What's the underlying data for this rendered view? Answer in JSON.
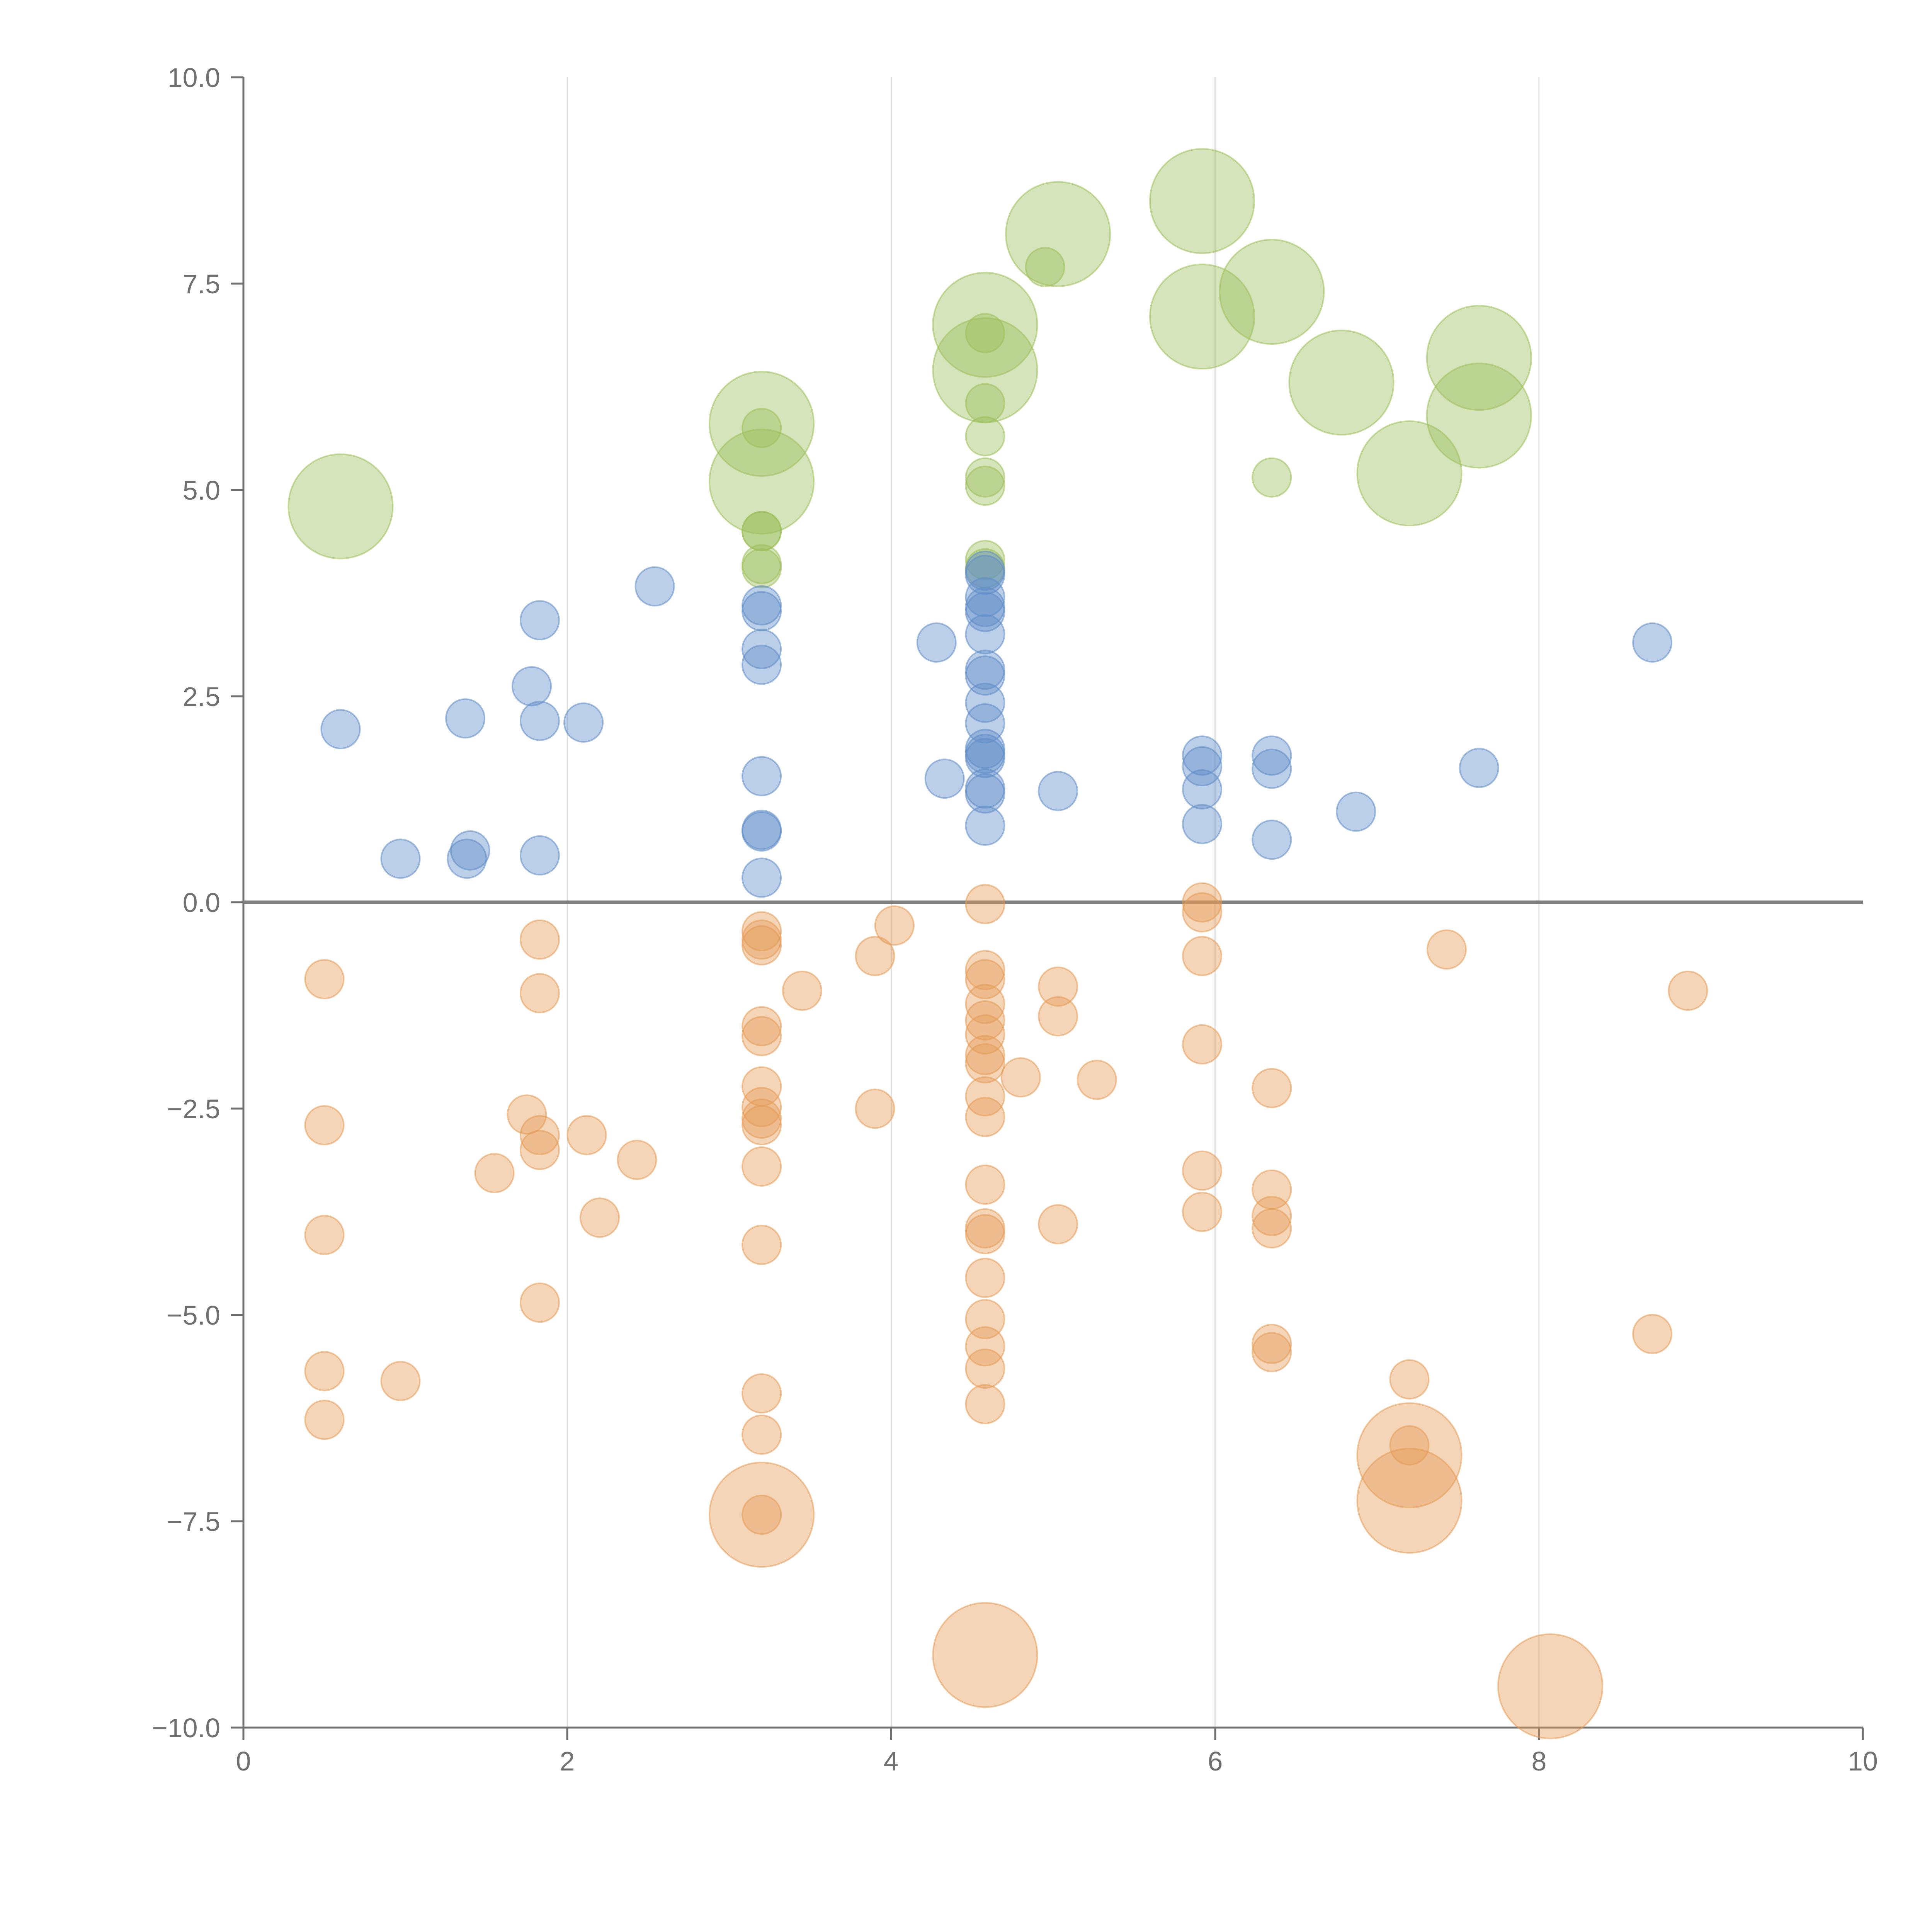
{
  "chart_data": {
    "type": "scatter",
    "title": "",
    "xlabel": "",
    "ylabel": "",
    "xlim": [
      0,
      10
    ],
    "ylim": [
      -10,
      10
    ],
    "x_ticks": [
      "0",
      "2",
      "4",
      "6",
      "8",
      "10"
    ],
    "y_ticks": [
      "10.0",
      "7.5",
      "5.0",
      "2.5",
      "0.0",
      "−2.5",
      "−5.0",
      "−7.5",
      "−10.0"
    ],
    "grid": "vertical gridlines at x ticks",
    "zero_line": true,
    "colors": {
      "green": "#9cbf5a",
      "blue": "#5f8dc7",
      "orange": "#e59a55",
      "axis": "#707070",
      "grid": "#dddddd",
      "zero_line": "#7f7f7f"
    },
    "series": [
      {
        "color_key": "green",
        "points": [
          {
            "x": 0.6,
            "y": 4.8,
            "r": "large"
          },
          {
            "x": 3.2,
            "y": 5.8,
            "r": "large"
          },
          {
            "x": 3.2,
            "y": 5.1,
            "r": "large"
          },
          {
            "x": 3.2,
            "y": 5.75,
            "r": "small"
          },
          {
            "x": 3.2,
            "y": 4.5,
            "r": "small"
          },
          {
            "x": 3.2,
            "y": 4.5,
            "r": "small"
          },
          {
            "x": 3.2,
            "y": 4.1,
            "r": "small"
          },
          {
            "x": 3.2,
            "y": 4.05,
            "r": "small"
          },
          {
            "x": 4.58,
            "y": 7.0,
            "r": "large"
          },
          {
            "x": 4.58,
            "y": 6.45,
            "r": "large"
          },
          {
            "x": 4.58,
            "y": 6.9,
            "r": "small"
          },
          {
            "x": 4.58,
            "y": 6.05,
            "r": "small"
          },
          {
            "x": 4.58,
            "y": 5.65,
            "r": "small"
          },
          {
            "x": 4.58,
            "y": 5.15,
            "r": "small"
          },
          {
            "x": 4.58,
            "y": 5.05,
            "r": "small"
          },
          {
            "x": 4.58,
            "y": 4.15,
            "r": "small"
          },
          {
            "x": 4.58,
            "y": 4.05,
            "r": "small"
          },
          {
            "x": 4.95,
            "y": 7.7,
            "r": "small"
          },
          {
            "x": 5.03,
            "y": 8.1,
            "r": "large"
          },
          {
            "x": 5.92,
            "y": 8.5,
            "r": "large"
          },
          {
            "x": 5.92,
            "y": 7.1,
            "r": "large"
          },
          {
            "x": 6.35,
            "y": 7.4,
            "r": "large"
          },
          {
            "x": 6.35,
            "y": 5.15,
            "r": "small"
          },
          {
            "x": 6.78,
            "y": 6.3,
            "r": "large"
          },
          {
            "x": 7.2,
            "y": 5.2,
            "r": "large"
          },
          {
            "x": 7.63,
            "y": 6.6,
            "r": "large"
          },
          {
            "x": 7.63,
            "y": 5.9,
            "r": "large"
          }
        ]
      },
      {
        "color_key": "blue",
        "points": [
          {
            "x": 0.6,
            "y": 2.1,
            "r": "small"
          },
          {
            "x": 0.97,
            "y": 0.53,
            "r": "small"
          },
          {
            "x": 1.37,
            "y": 2.23,
            "r": "small"
          },
          {
            "x": 1.38,
            "y": 0.53,
            "r": "small"
          },
          {
            "x": 1.4,
            "y": 0.63,
            "r": "small"
          },
          {
            "x": 1.78,
            "y": 2.62,
            "r": "small"
          },
          {
            "x": 1.83,
            "y": 3.42,
            "r": "small"
          },
          {
            "x": 1.83,
            "y": 2.2,
            "r": "small"
          },
          {
            "x": 1.83,
            "y": 0.57,
            "r": "small"
          },
          {
            "x": 2.1,
            "y": 2.18,
            "r": "small"
          },
          {
            "x": 2.54,
            "y": 3.83,
            "r": "small"
          },
          {
            "x": 3.2,
            "y": 3.6,
            "r": "small"
          },
          {
            "x": 3.2,
            "y": 3.53,
            "r": "small"
          },
          {
            "x": 3.2,
            "y": 3.07,
            "r": "small"
          },
          {
            "x": 3.2,
            "y": 2.88,
            "r": "small"
          },
          {
            "x": 3.2,
            "y": 1.53,
            "r": "small"
          },
          {
            "x": 3.2,
            "y": 0.88,
            "r": "small"
          },
          {
            "x": 3.2,
            "y": 0.86,
            "r": "small"
          },
          {
            "x": 3.2,
            "y": 0.3,
            "r": "small"
          },
          {
            "x": 4.28,
            "y": 3.15,
            "r": "small"
          },
          {
            "x": 4.33,
            "y": 1.5,
            "r": "small"
          },
          {
            "x": 4.58,
            "y": 4.02,
            "r": "small"
          },
          {
            "x": 4.58,
            "y": 3.97,
            "r": "small"
          },
          {
            "x": 4.58,
            "y": 3.7,
            "r": "small"
          },
          {
            "x": 4.58,
            "y": 3.58,
            "r": "small"
          },
          {
            "x": 4.58,
            "y": 3.52,
            "r": "small"
          },
          {
            "x": 4.58,
            "y": 3.25,
            "r": "small"
          },
          {
            "x": 4.58,
            "y": 2.82,
            "r": "small"
          },
          {
            "x": 4.58,
            "y": 2.75,
            "r": "small"
          },
          {
            "x": 4.58,
            "y": 2.42,
            "r": "small"
          },
          {
            "x": 4.58,
            "y": 2.17,
            "r": "small"
          },
          {
            "x": 4.58,
            "y": 1.86,
            "r": "small"
          },
          {
            "x": 4.58,
            "y": 1.8,
            "r": "small"
          },
          {
            "x": 4.58,
            "y": 1.75,
            "r": "small"
          },
          {
            "x": 4.58,
            "y": 1.38,
            "r": "small"
          },
          {
            "x": 4.58,
            "y": 1.32,
            "r": "small"
          },
          {
            "x": 4.58,
            "y": 0.93,
            "r": "small"
          },
          {
            "x": 5.03,
            "y": 1.35,
            "r": "small"
          },
          {
            "x": 5.92,
            "y": 1.78,
            "r": "small"
          },
          {
            "x": 5.92,
            "y": 1.65,
            "r": "small"
          },
          {
            "x": 5.92,
            "y": 1.37,
            "r": "small"
          },
          {
            "x": 5.92,
            "y": 0.95,
            "r": "small"
          },
          {
            "x": 6.35,
            "y": 1.78,
            "r": "small"
          },
          {
            "x": 6.35,
            "y": 1.62,
            "r": "small"
          },
          {
            "x": 6.35,
            "y": 0.76,
            "r": "small"
          },
          {
            "x": 6.87,
            "y": 1.1,
            "r": "small"
          },
          {
            "x": 7.63,
            "y": 1.63,
            "r": "small"
          },
          {
            "x": 8.7,
            "y": 3.15,
            "r": "small"
          }
        ]
      },
      {
        "color_key": "orange",
        "points": [
          {
            "x": 0.5,
            "y": -0.93,
            "r": "small"
          },
          {
            "x": 0.5,
            "y": -2.7,
            "r": "small"
          },
          {
            "x": 0.5,
            "y": -4.03,
            "r": "small"
          },
          {
            "x": 0.5,
            "y": -5.68,
            "r": "small"
          },
          {
            "x": 0.5,
            "y": -6.27,
            "r": "small"
          },
          {
            "x": 0.97,
            "y": -5.8,
            "r": "small"
          },
          {
            "x": 1.55,
            "y": -3.28,
            "r": "small"
          },
          {
            "x": 1.75,
            "y": -2.57,
            "r": "small"
          },
          {
            "x": 1.83,
            "y": -0.45,
            "r": "small"
          },
          {
            "x": 1.83,
            "y": -1.1,
            "r": "small"
          },
          {
            "x": 1.83,
            "y": -2.82,
            "r": "small"
          },
          {
            "x": 1.83,
            "y": -3.0,
            "r": "small"
          },
          {
            "x": 1.83,
            "y": -4.85,
            "r": "small"
          },
          {
            "x": 2.12,
            "y": -2.82,
            "r": "small"
          },
          {
            "x": 2.2,
            "y": -3.82,
            "r": "small"
          },
          {
            "x": 2.43,
            "y": -3.12,
            "r": "small"
          },
          {
            "x": 3.2,
            "y": -0.35,
            "r": "small"
          },
          {
            "x": 3.2,
            "y": -0.45,
            "r": "small"
          },
          {
            "x": 3.2,
            "y": -0.52,
            "r": "small"
          },
          {
            "x": 3.2,
            "y": -1.5,
            "r": "small"
          },
          {
            "x": 3.2,
            "y": -1.62,
            "r": "small"
          },
          {
            "x": 3.2,
            "y": -2.23,
            "r": "small"
          },
          {
            "x": 3.2,
            "y": -2.48,
            "r": "small"
          },
          {
            "x": 3.2,
            "y": -2.62,
            "r": "small"
          },
          {
            "x": 3.2,
            "y": -2.7,
            "r": "small"
          },
          {
            "x": 3.2,
            "y": -3.2,
            "r": "small"
          },
          {
            "x": 3.2,
            "y": -4.15,
            "r": "small"
          },
          {
            "x": 3.2,
            "y": -5.95,
            "r": "small"
          },
          {
            "x": 3.2,
            "y": -6.45,
            "r": "small"
          },
          {
            "x": 3.2,
            "y": -7.42,
            "r": "large"
          },
          {
            "x": 3.2,
            "y": -7.42,
            "r": "small"
          },
          {
            "x": 3.45,
            "y": -1.07,
            "r": "small"
          },
          {
            "x": 3.9,
            "y": -0.65,
            "r": "small"
          },
          {
            "x": 3.9,
            "y": -2.5,
            "r": "small"
          },
          {
            "x": 4.02,
            "y": -0.28,
            "r": "small"
          },
          {
            "x": 4.58,
            "y": -0.02,
            "r": "small"
          },
          {
            "x": 4.58,
            "y": -0.82,
            "r": "small"
          },
          {
            "x": 4.58,
            "y": -0.93,
            "r": "small"
          },
          {
            "x": 4.58,
            "y": -1.23,
            "r": "small"
          },
          {
            "x": 4.58,
            "y": -1.43,
            "r": "small"
          },
          {
            "x": 4.58,
            "y": -1.6,
            "r": "small"
          },
          {
            "x": 4.58,
            "y": -1.85,
            "r": "small"
          },
          {
            "x": 4.58,
            "y": -1.95,
            "r": "small"
          },
          {
            "x": 4.58,
            "y": -2.35,
            "r": "small"
          },
          {
            "x": 4.58,
            "y": -2.6,
            "r": "small"
          },
          {
            "x": 4.58,
            "y": -3.42,
            "r": "small"
          },
          {
            "x": 4.58,
            "y": -3.95,
            "r": "small"
          },
          {
            "x": 4.58,
            "y": -4.02,
            "r": "small"
          },
          {
            "x": 4.58,
            "y": -4.55,
            "r": "small"
          },
          {
            "x": 4.58,
            "y": -5.05,
            "r": "small"
          },
          {
            "x": 4.58,
            "y": -5.38,
            "r": "small"
          },
          {
            "x": 4.58,
            "y": -5.65,
            "r": "small"
          },
          {
            "x": 4.58,
            "y": -6.08,
            "r": "small"
          },
          {
            "x": 4.58,
            "y": -9.12,
            "r": "large"
          },
          {
            "x": 4.8,
            "y": -2.12,
            "r": "small"
          },
          {
            "x": 5.03,
            "y": -1.02,
            "r": "small"
          },
          {
            "x": 5.03,
            "y": -1.38,
            "r": "small"
          },
          {
            "x": 5.03,
            "y": -3.9,
            "r": "small"
          },
          {
            "x": 5.27,
            "y": -2.15,
            "r": "small"
          },
          {
            "x": 5.92,
            "y": 0.0,
            "r": "small"
          },
          {
            "x": 5.92,
            "y": -0.12,
            "r": "small"
          },
          {
            "x": 5.92,
            "y": -0.65,
            "r": "small"
          },
          {
            "x": 5.92,
            "y": -1.72,
            "r": "small"
          },
          {
            "x": 5.92,
            "y": -3.25,
            "r": "small"
          },
          {
            "x": 5.92,
            "y": -3.75,
            "r": "small"
          },
          {
            "x": 6.35,
            "y": -2.25,
            "r": "small"
          },
          {
            "x": 6.35,
            "y": -3.48,
            "r": "small"
          },
          {
            "x": 6.35,
            "y": -3.8,
            "r": "small"
          },
          {
            "x": 6.35,
            "y": -3.95,
            "r": "small"
          },
          {
            "x": 6.35,
            "y": -5.35,
            "r": "small"
          },
          {
            "x": 6.35,
            "y": -5.45,
            "r": "small"
          },
          {
            "x": 7.2,
            "y": -5.78,
            "r": "small"
          },
          {
            "x": 7.2,
            "y": -6.58,
            "r": "small"
          },
          {
            "x": 7.2,
            "y": -6.7,
            "r": "large"
          },
          {
            "x": 7.2,
            "y": -7.25,
            "r": "large"
          },
          {
            "x": 7.43,
            "y": -0.57,
            "r": "small"
          },
          {
            "x": 8.07,
            "y": -9.5,
            "r": "large"
          },
          {
            "x": 8.7,
            "y": -5.23,
            "r": "small"
          },
          {
            "x": 8.92,
            "y": -1.07,
            "r": "small"
          }
        ]
      }
    ]
  }
}
